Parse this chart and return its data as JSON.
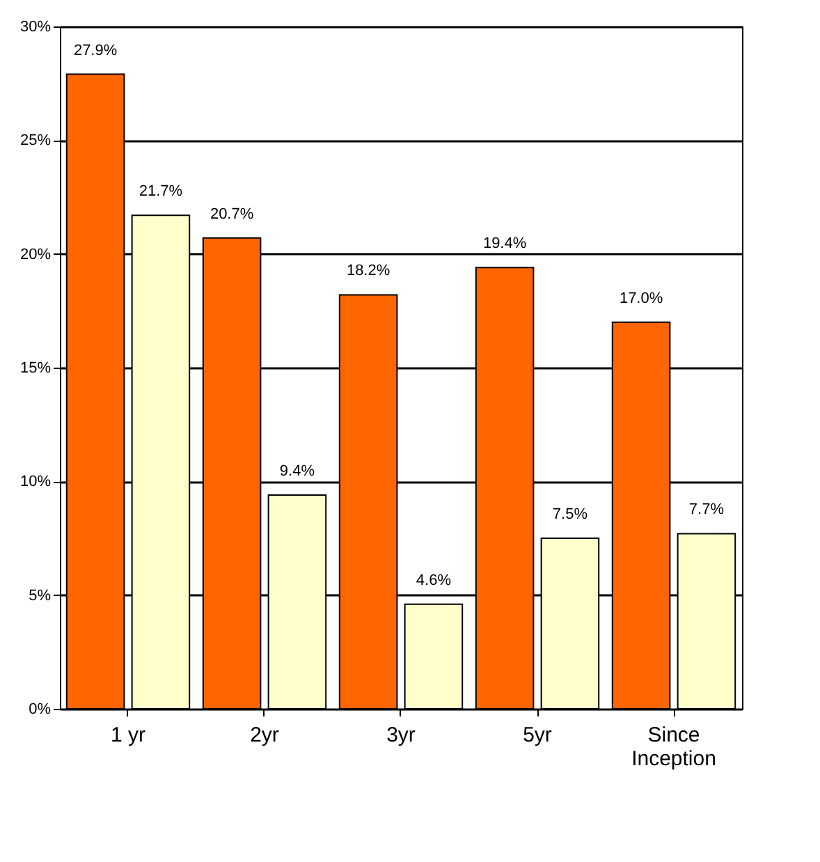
{
  "chart_data": {
    "type": "bar",
    "categories": [
      "1 yr",
      "2yr",
      "3yr",
      "5yr",
      "Since Inception"
    ],
    "series": [
      {
        "color": "#ff6600",
        "values": [
          27.9,
          20.7,
          18.2,
          19.4,
          17.0
        ],
        "value_labels": [
          "27.9%",
          "20.7%",
          "18.2%",
          "19.4%",
          "17.0%"
        ]
      },
      {
        "color": "#ffffcc",
        "values": [
          21.7,
          9.4,
          4.6,
          7.5,
          7.7
        ],
        "value_labels": [
          "21.7%",
          "9.4%",
          "4.6%",
          "7.5%",
          "7.7%"
        ]
      }
    ],
    "ylim": [
      0,
      30
    ],
    "yticks": [
      {
        "value": 0,
        "label": "0%"
      },
      {
        "value": 5,
        "label": "5%"
      },
      {
        "value": 10,
        "label": "10%"
      },
      {
        "value": 15,
        "label": "15%"
      },
      {
        "value": 20,
        "label": "20%"
      },
      {
        "value": 25,
        "label": "25%"
      },
      {
        "value": 30,
        "label": "30%"
      }
    ],
    "grid": "y",
    "legend": false
  }
}
